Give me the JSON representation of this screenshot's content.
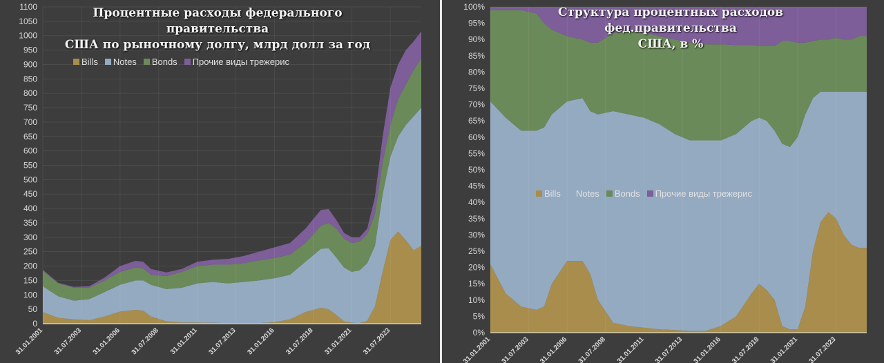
{
  "colors": {
    "bills": "#a88d4c",
    "notes": "#94aac1",
    "bonds": "#6b8a59",
    "other": "#7d5e99",
    "background": "#3d3d3d",
    "grid": "#4c4c4c",
    "axis_text": "#d8d8d8"
  },
  "chart_data": [
    {
      "type": "area",
      "stacked": true,
      "title": "Процентные расходы федерального правительства США по рыночному долгу, млрд долл за год",
      "title_lines": [
        "Процентные расходы федерального правительства",
        "США по рыночному долгу, млрд долл за год"
      ],
      "ylim": [
        0,
        1100
      ],
      "ytick_step": 50,
      "grid": true,
      "legend_placement": "top-left",
      "x_tick_labels": [
        "31.01.2001",
        "31.07.2003",
        "31.01.2006",
        "31.07.2008",
        "31.01.2011",
        "31.07.2013",
        "31.01.2016",
        "31.07.2018",
        "31.01.2021",
        "31.07.2023"
      ],
      "x": [
        "2001-01",
        "2002-01",
        "2003-01",
        "2004-01",
        "2005-01",
        "2006-01",
        "2007-01",
        "2007-07",
        "2008-01",
        "2009-01",
        "2010-01",
        "2011-01",
        "2012-01",
        "2013-01",
        "2014-01",
        "2015-01",
        "2016-01",
        "2017-01",
        "2018-01",
        "2019-01",
        "2019-07",
        "2020-01",
        "2020-07",
        "2021-01",
        "2021-07",
        "2022-01",
        "2022-07",
        "2023-01",
        "2023-07",
        "2024-01",
        "2024-07",
        "2025-01",
        "2025-07"
      ],
      "series": [
        {
          "name": "Bills",
          "key": "bills",
          "values": [
            40,
            20,
            15,
            12,
            25,
            42,
            48,
            45,
            25,
            8,
            4,
            4,
            3,
            2,
            2,
            2,
            5,
            15,
            40,
            55,
            50,
            30,
            8,
            3,
            2,
            10,
            60,
            180,
            290,
            320,
            290,
            255,
            270
          ]
        },
        {
          "name": "Notes",
          "key": "notes",
          "values": [
            90,
            75,
            65,
            73,
            85,
            93,
            102,
            105,
            110,
            112,
            121,
            136,
            142,
            138,
            143,
            148,
            153,
            155,
            175,
            205,
            212,
            200,
            187,
            177,
            183,
            200,
            210,
            270,
            290,
            330,
            400,
            465,
            480
          ]
        },
        {
          "name": "Bonds",
          "key": "bonds",
          "values": [
            53,
            45,
            45,
            40,
            40,
            45,
            45,
            42,
            35,
            45,
            55,
            60,
            60,
            65,
            65,
            70,
            70,
            70,
            65,
            80,
            88,
            100,
            100,
            100,
            100,
            100,
            110,
            110,
            110,
            130,
            140,
            160,
            170
          ]
        },
        {
          "name": "Прочие виды трежерис",
          "key": "other",
          "values": [
            4,
            2,
            3,
            5,
            10,
            20,
            23,
            23,
            20,
            13,
            10,
            15,
            17,
            20,
            25,
            30,
            37,
            40,
            50,
            55,
            48,
            30,
            20,
            20,
            15,
            20,
            60,
            90,
            130,
            120,
            120,
            100,
            95
          ]
        }
      ]
    },
    {
      "type": "area",
      "stacked": true,
      "title": "Структура процентных расходов фед.правительства США, в %",
      "title_lines": [
        "Структура процентных расходов фед.правительства",
        "США, в %"
      ],
      "ylim": [
        0,
        100
      ],
      "ytick_step": 5,
      "unit": "%",
      "grid": true,
      "legend_placement": "center-left",
      "x_tick_labels": [
        "31.01.2001",
        "31.07.2003",
        "31.01.2006",
        "31.07.2008",
        "31.01.2011",
        "31.07.2013",
        "31.01.2016",
        "31.07.2018",
        "31.01.2021",
        "31.07.2023"
      ],
      "x": [
        "2001-01",
        "2002-01",
        "2003-01",
        "2004-01",
        "2004-07",
        "2005-01",
        "2006-01",
        "2007-01",
        "2007-07",
        "2008-01",
        "2009-01",
        "2010-01",
        "2011-01",
        "2012-01",
        "2013-01",
        "2014-01",
        "2015-01",
        "2016-01",
        "2017-01",
        "2018-01",
        "2018-07",
        "2019-01",
        "2019-07",
        "2020-01",
        "2020-07",
        "2021-01",
        "2021-07",
        "2022-01",
        "2022-07",
        "2023-01",
        "2023-07",
        "2024-01",
        "2024-07",
        "2025-01",
        "2025-07"
      ],
      "series": [
        {
          "name": "Bills",
          "key": "bills",
          "values": [
            21,
            12,
            8,
            7,
            8,
            15,
            22,
            22,
            18,
            10,
            3,
            2,
            1.5,
            1,
            0.8,
            0.5,
            0.5,
            2,
            5,
            12,
            15,
            13,
            10,
            2,
            1,
            1,
            8,
            25,
            34,
            37,
            35,
            30,
            27,
            26,
            26
          ]
        },
        {
          "name": "Notes",
          "key": "notes",
          "values": [
            50,
            54,
            54,
            55,
            55,
            52,
            49,
            50,
            50,
            57,
            65,
            65,
            64.5,
            63,
            60.2,
            58.5,
            58.5,
            57,
            56,
            53,
            51,
            52,
            52,
            56,
            56,
            59,
            59,
            47,
            40,
            37,
            39,
            44,
            47,
            48,
            48
          ]
        },
        {
          "name": "Bonds",
          "key": "bonds",
          "values": [
            28,
            33,
            37,
            36,
            32,
            26,
            20,
            18,
            21,
            22,
            24,
            25.5,
            26,
            27,
            29,
            30,
            29.5,
            29.5,
            27.3,
            23.3,
            22,
            23,
            26,
            31.5,
            32.5,
            29,
            22,
            17.5,
            16,
            16,
            16.5,
            16,
            16,
            17,
            17
          ]
        },
        {
          "name": "Прочие виды трежерис",
          "key": "other",
          "values": [
            1,
            1,
            1,
            2,
            5,
            7,
            9,
            10,
            11,
            11,
            8,
            7.5,
            8,
            9,
            10,
            11,
            11.5,
            11.5,
            11.7,
            11.7,
            12,
            12,
            12,
            10.5,
            10.5,
            11,
            11,
            10.5,
            10,
            10,
            9.5,
            10,
            10,
            9,
            9
          ]
        }
      ]
    }
  ]
}
